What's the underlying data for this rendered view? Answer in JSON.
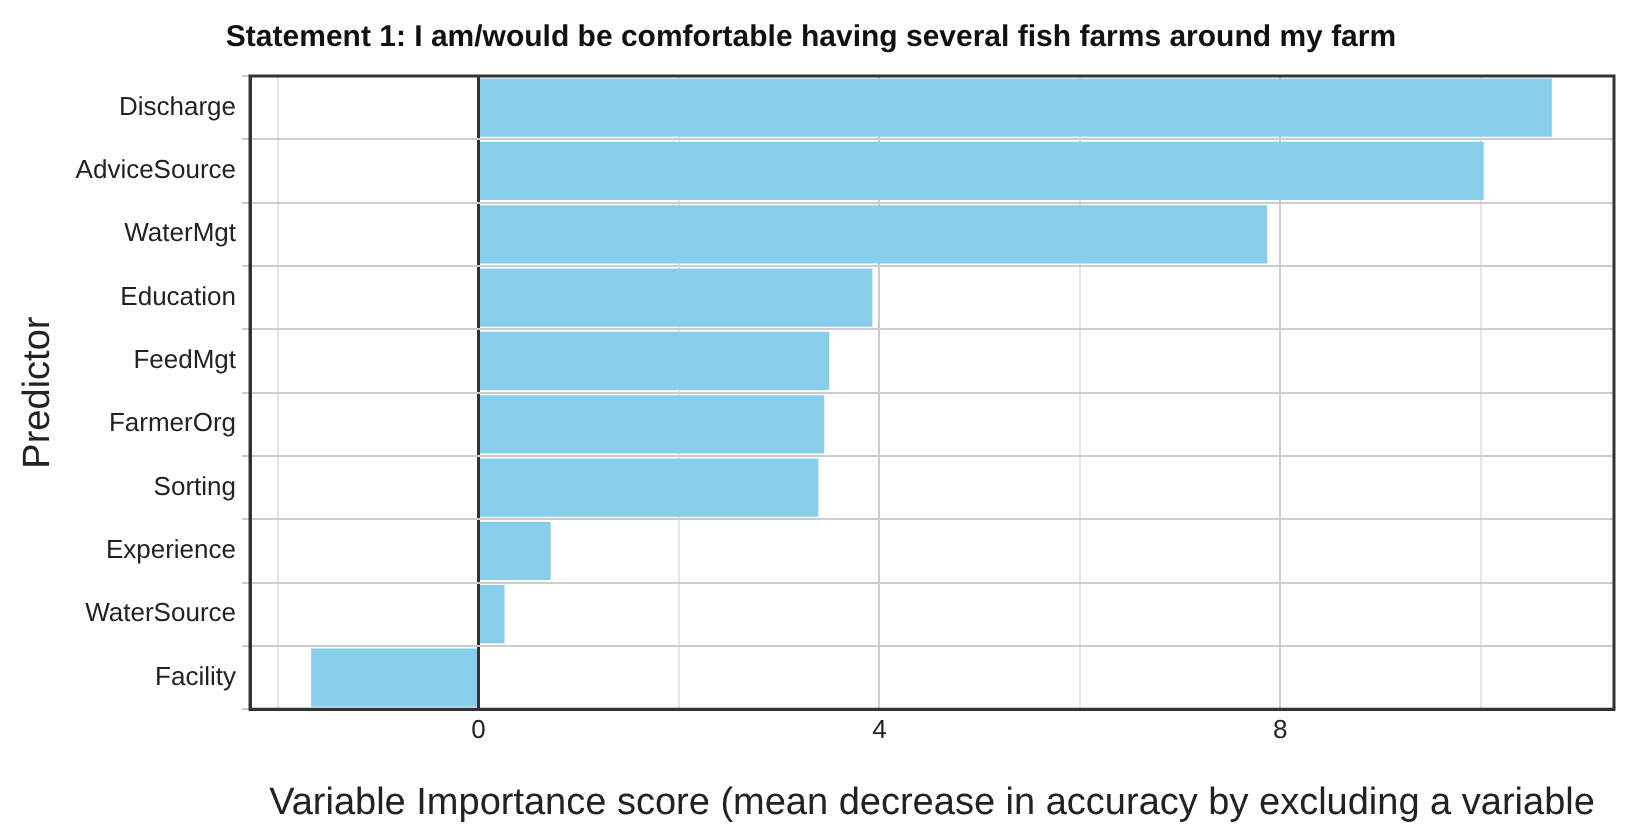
{
  "chart_data": {
    "type": "bar",
    "orientation": "horizontal",
    "title": "Statement 1: I am/would be comfortable having several fish farms around my farm",
    "ylabel": "Predictor",
    "xlabel": "Variable Importance score (mean decrease in accuracy by excluding a variable",
    "categories": [
      "Discharge",
      "AdviceSource",
      "WaterMgt",
      "Education",
      "FeedMgt",
      "FarmerOrg",
      "Sorting",
      "Experience",
      "WaterSource",
      "Facility"
    ],
    "values": [
      10.71,
      10.03,
      7.87,
      3.93,
      3.5,
      3.45,
      3.39,
      0.72,
      0.26,
      -1.67
    ],
    "color": "#87ceeb",
    "xlim": [
      -2.28,
      11.33
    ],
    "xticks": [
      {
        "value": -2,
        "label": null
      },
      0,
      {
        "value": 2,
        "label": null
      },
      4,
      {
        "value": 6,
        "label": null
      },
      8,
      {
        "value": 10,
        "label": null
      }
    ],
    "grid": true
  }
}
